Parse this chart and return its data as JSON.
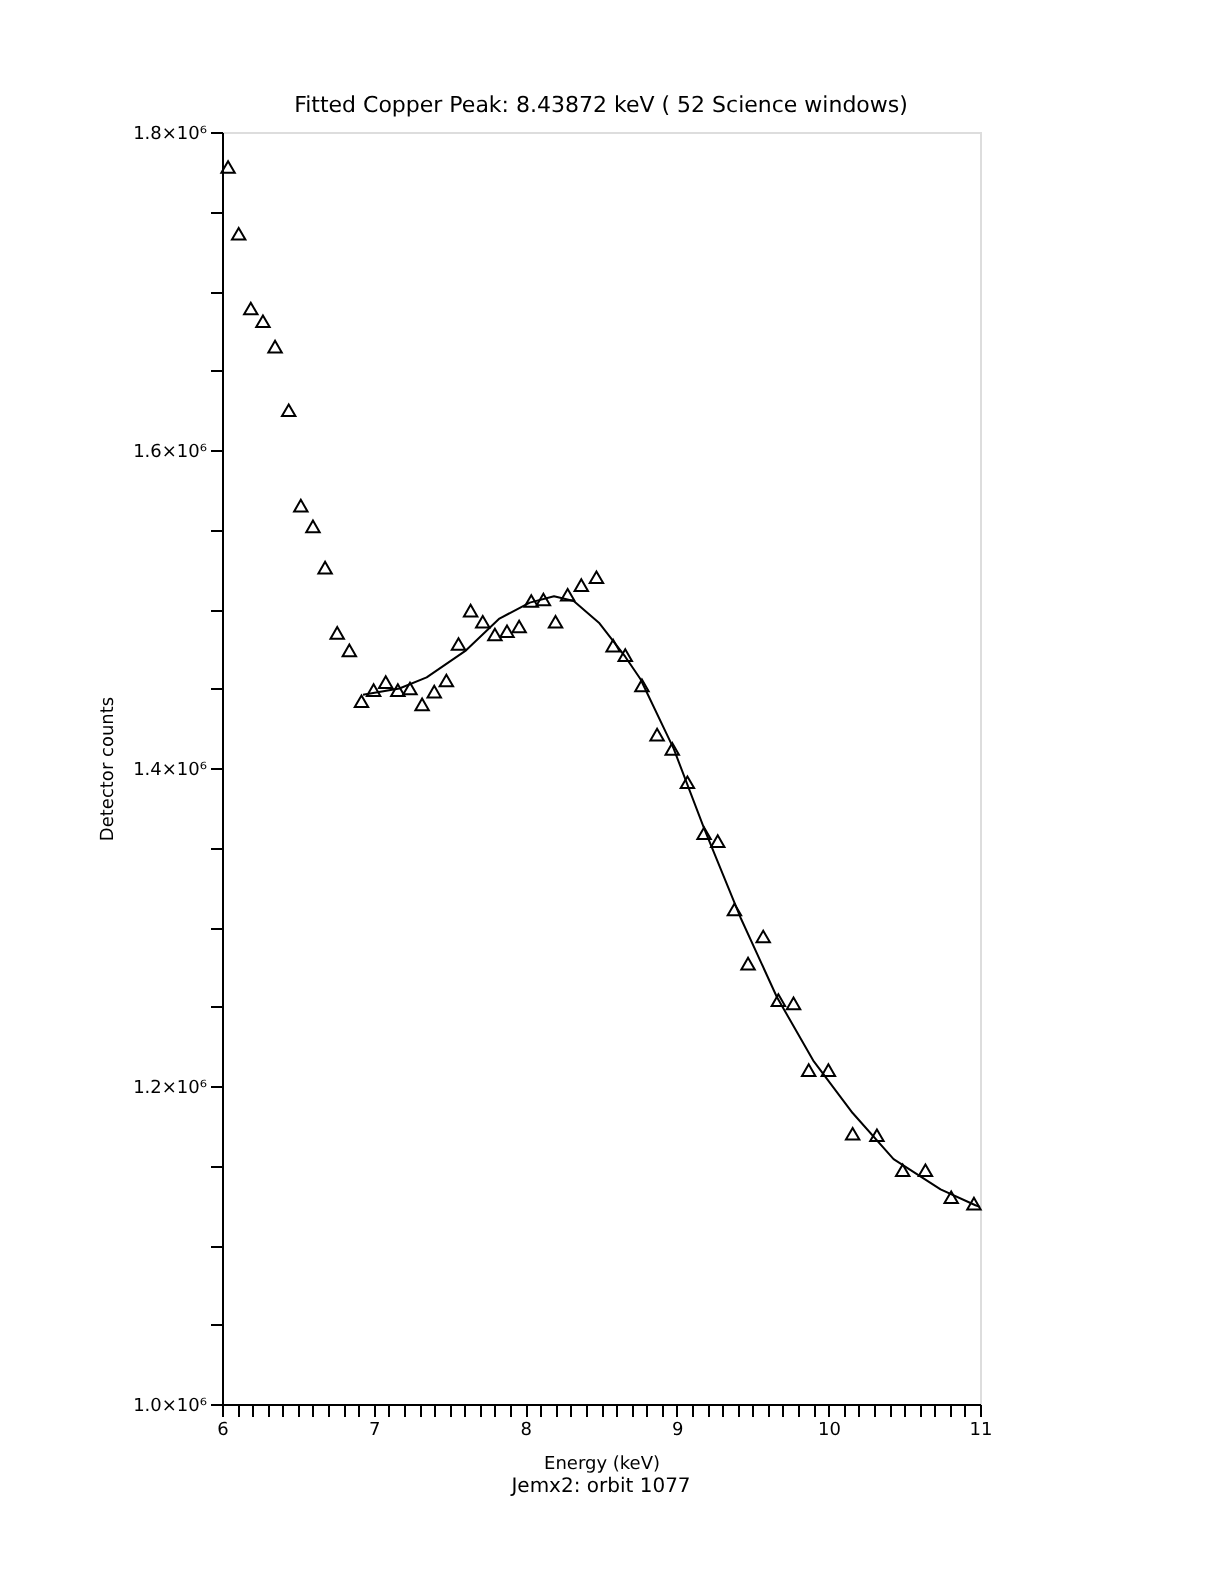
{
  "chart_data": {
    "type": "scatter",
    "title": "Fitted Copper Peak: 8.43872 keV ( 52 Science windows)",
    "xlabel": "Energy (keV)",
    "ylabel": "Detector counts",
    "annotations": [
      "Jemx2: orbit 1077"
    ],
    "xlim": [
      6,
      11
    ],
    "ylim": [
      1000000,
      1800000
    ],
    "xticks": [
      6,
      {
        "value": 6.1,
        "label": null
      },
      {
        "value": 6.2,
        "label": null
      },
      {
        "value": 6.3,
        "label": null
      },
      {
        "value": 6.4,
        "label": null
      },
      {
        "value": 6.5,
        "label": null
      },
      {
        "value": 6.6,
        "label": null
      },
      {
        "value": 6.7,
        "label": null
      },
      {
        "value": 6.8,
        "label": null
      },
      {
        "value": 6.9,
        "label": null
      },
      7,
      {
        "value": 7.1,
        "label": null
      },
      {
        "value": 7.2,
        "label": null
      },
      {
        "value": 7.3,
        "label": null
      },
      {
        "value": 7.4,
        "label": null
      },
      {
        "value": 7.5,
        "label": null
      },
      {
        "value": 7.6,
        "label": null
      },
      {
        "value": 7.7,
        "label": null
      },
      {
        "value": 7.8,
        "label": null
      },
      {
        "value": 7.9,
        "label": null
      },
      8,
      {
        "value": 8.1,
        "label": null
      },
      {
        "value": 8.2,
        "label": null
      },
      {
        "value": 8.3,
        "label": null
      },
      {
        "value": 8.4,
        "label": null
      },
      {
        "value": 8.5,
        "label": null
      },
      {
        "value": 8.6,
        "label": null
      },
      {
        "value": 8.7,
        "label": null
      },
      {
        "value": 8.8,
        "label": null
      },
      {
        "value": 8.9,
        "label": null
      },
      9,
      {
        "value": 9.1,
        "label": null
      },
      {
        "value": 9.2,
        "label": null
      },
      {
        "value": 9.3,
        "label": null
      },
      {
        "value": 9.4,
        "label": null
      },
      {
        "value": 9.5,
        "label": null
      },
      {
        "value": 9.6,
        "label": null
      },
      {
        "value": 9.7,
        "label": null
      },
      {
        "value": 9.8,
        "label": null
      },
      {
        "value": 9.9,
        "label": null
      },
      10,
      {
        "value": 10.1,
        "label": null
      },
      {
        "value": 10.2,
        "label": null
      },
      {
        "value": 10.3,
        "label": null
      },
      {
        "value": 10.4,
        "label": null
      },
      {
        "value": 10.5,
        "label": null
      },
      {
        "value": 10.6,
        "label": null
      },
      {
        "value": 10.7,
        "label": null
      },
      {
        "value": 10.8,
        "label": null
      },
      {
        "value": 10.9,
        "label": null
      },
      11
    ],
    "yticks": [
      {
        "value": 1000000,
        "label": "1.0×10⁶"
      },
      {
        "value": 1050000,
        "label": null
      },
      {
        "value": 1100000,
        "label": null
      },
      {
        "value": 1150000,
        "label": null
      },
      {
        "value": 1200000,
        "label": "1.2×10⁶"
      },
      {
        "value": 1250000,
        "label": null
      },
      {
        "value": 1300000,
        "label": null
      },
      {
        "value": 1350000,
        "label": null
      },
      {
        "value": 1400000,
        "label": "1.4×10⁶"
      },
      {
        "value": 1450000,
        "label": null
      },
      {
        "value": 1500000,
        "label": null
      },
      {
        "value": 1550000,
        "label": null
      },
      {
        "value": 1600000,
        "label": "1.6×10⁶"
      },
      {
        "value": 1650000,
        "label": null
      },
      {
        "value": 1700000,
        "label": null
      },
      {
        "value": 1750000,
        "label": null
      },
      {
        "value": 1800000,
        "label": "1.8×10⁶"
      }
    ],
    "grid": false,
    "series": [
      {
        "type": "scatter",
        "marker": "triangle",
        "color": "#000000",
        "x": [
          6.04,
          6.11,
          6.19,
          6.27,
          6.35,
          6.44,
          6.52,
          6.6,
          6.68,
          6.76,
          6.84,
          6.92,
          7.0,
          7.08,
          7.16,
          7.24,
          7.32,
          7.4,
          7.48,
          7.56,
          7.64,
          7.72,
          7.8,
          7.88,
          7.96,
          8.04,
          8.12,
          8.2,
          8.28,
          8.37,
          8.47,
          8.58,
          8.66,
          8.77,
          8.87,
          8.97,
          9.07,
          9.18,
          9.27,
          9.38,
          9.47,
          9.57,
          9.67,
          9.77,
          9.87,
          10.0,
          10.16,
          10.32,
          10.49,
          10.64,
          10.81,
          10.96
        ],
        "values": [
          1778000,
          1736000,
          1689000,
          1681000,
          1665000,
          1625000,
          1565000,
          1552000,
          1526000,
          1485000,
          1474000,
          1442000,
          1449000,
          1454000,
          1449000,
          1450000,
          1440000,
          1448000,
          1455000,
          1478000,
          1499000,
          1492000,
          1484000,
          1486000,
          1489000,
          1505000,
          1506000,
          1492000,
          1509000,
          1515000,
          1520000,
          1477000,
          1471000,
          1452000,
          1421000,
          1412000,
          1391000,
          1359000,
          1354000,
          1311000,
          1277000,
          1294000,
          1254000,
          1252000,
          1210000,
          1210000,
          1170000,
          1169000,
          1147000,
          1147000,
          1130000,
          1126000
        ]
      },
      {
        "type": "line",
        "marker": "none",
        "line_style": "solid",
        "color": "#000000",
        "x": [
          6.93,
          7.17,
          7.35,
          7.61,
          7.83,
          8.03,
          8.19,
          8.32,
          8.49,
          8.66,
          8.76,
          8.98,
          9.18,
          9.42,
          9.66,
          9.9,
          10.16,
          10.43,
          10.74,
          10.97,
          11.0
        ],
        "values": [
          1446000,
          1450000,
          1457000,
          1474000,
          1494000,
          1504000,
          1508000,
          1505000,
          1491000,
          1470000,
          1456000,
          1412000,
          1362000,
          1306000,
          1256000,
          1216000,
          1183000,
          1154000,
          1135000,
          1125000,
          1124000
        ]
      }
    ]
  }
}
